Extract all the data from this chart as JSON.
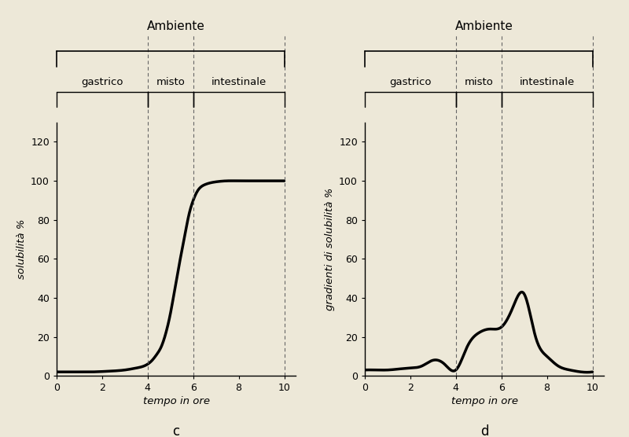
{
  "bg_color": "#ede8d8",
  "line_color": "#000000",
  "dashed_color": "#666666",
  "left_chart": {
    "label": "c",
    "ylabel": "solubilità %",
    "xlabel": "tempo in ore",
    "xlim": [
      0,
      10.5
    ],
    "ylim": [
      0,
      130
    ],
    "yticks": [
      0,
      20,
      40,
      60,
      80,
      100,
      120
    ],
    "xticks": [
      0,
      2,
      4,
      6,
      8,
      10
    ],
    "xticklabels": [
      "0",
      "2",
      "4",
      "6",
      "8",
      "10"
    ],
    "vlines": [
      4,
      6,
      10
    ],
    "ambiente_label": "Ambiente",
    "regions": [
      {
        "label": "gastrico",
        "x_start": 0,
        "x_end": 4
      },
      {
        "label": "misto",
        "x_start": 4,
        "x_end": 6
      },
      {
        "label": "intestinale",
        "x_start": 6,
        "x_end": 10
      }
    ],
    "curve_x": [
      0,
      0.5,
      1.0,
      1.5,
      2.0,
      2.5,
      3.0,
      3.5,
      4.0,
      4.2,
      4.4,
      4.6,
      4.8,
      5.0,
      5.2,
      5.4,
      5.6,
      5.8,
      6.0,
      6.2,
      6.5,
      7.0,
      7.5,
      8.0,
      8.5,
      9.0,
      9.5,
      10.0
    ],
    "curve_y": [
      2,
      2,
      2,
      2,
      2.2,
      2.5,
      3,
      4,
      6,
      8,
      11,
      15,
      22,
      32,
      45,
      58,
      70,
      82,
      90,
      95,
      98,
      99.5,
      100,
      100,
      100,
      100,
      100,
      100
    ]
  },
  "right_chart": {
    "label": "d",
    "ylabel": "gradienti di solubilità %",
    "xlabel": "tempo in ore",
    "xlim": [
      0,
      10.5
    ],
    "ylim": [
      0,
      130
    ],
    "yticks": [
      0,
      20,
      40,
      60,
      80,
      100,
      120
    ],
    "xticks": [
      0,
      2,
      4,
      6,
      8,
      10
    ],
    "xticklabels": [
      "0",
      "2",
      "4",
      "6",
      "8",
      "10"
    ],
    "vlines": [
      4,
      6,
      10
    ],
    "ambiente_label": "Ambiente",
    "regions": [
      {
        "label": "gastrico",
        "x_start": 0,
        "x_end": 4
      },
      {
        "label": "misto",
        "x_start": 4,
        "x_end": 6
      },
      {
        "label": "intestinale",
        "x_start": 6,
        "x_end": 10
      }
    ],
    "curve_x": [
      0,
      0.5,
      1.0,
      1.5,
      2.0,
      2.5,
      3.0,
      3.5,
      4.0,
      4.5,
      5.0,
      5.5,
      6.0,
      6.5,
      7.0,
      7.5,
      8.0,
      8.5,
      9.0,
      9.5,
      10.0
    ],
    "curve_y": [
      3,
      3,
      3,
      3.5,
      4,
      5,
      8,
      6,
      3,
      15,
      22,
      24,
      25,
      35,
      42,
      20,
      10,
      5,
      3,
      2,
      2
    ]
  }
}
